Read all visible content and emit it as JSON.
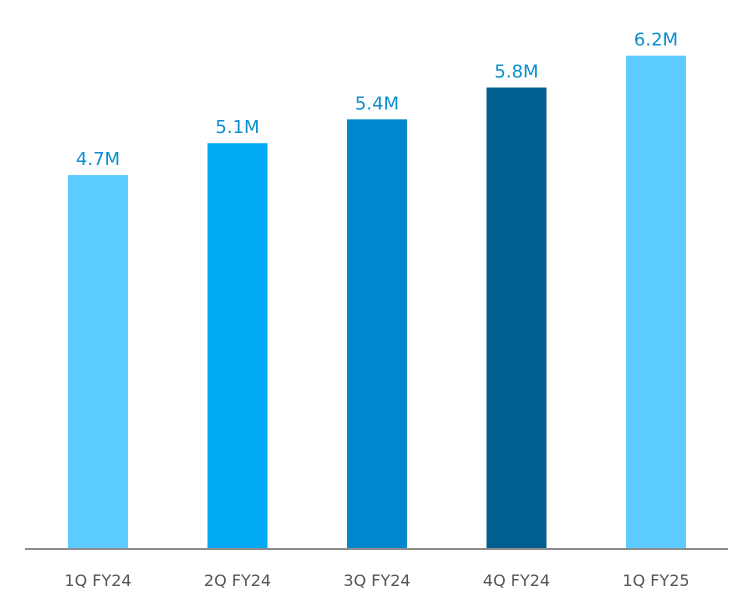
{
  "chart_data": {
    "type": "bar",
    "categories": [
      "1Q FY24",
      "2Q FY24",
      "3Q FY24",
      "4Q FY24",
      "1Q FY25"
    ],
    "values": [
      4.7,
      5.1,
      5.4,
      5.8,
      6.2
    ],
    "data_labels": [
      "4.7M",
      "5.1M",
      "5.4M",
      "5.8M",
      "6.2M"
    ],
    "bar_colors": [
      "#5ccbff",
      "#00a9f4",
      "#0086cc",
      "#005f8f",
      "#5ccbff"
    ],
    "label_color": "#0a8fcf",
    "axis_color": "#8c8c8c",
    "ylim": [
      0,
      6.9
    ],
    "grid": false,
    "legend": "none",
    "title": "",
    "xlabel": "",
    "ylabel": ""
  }
}
